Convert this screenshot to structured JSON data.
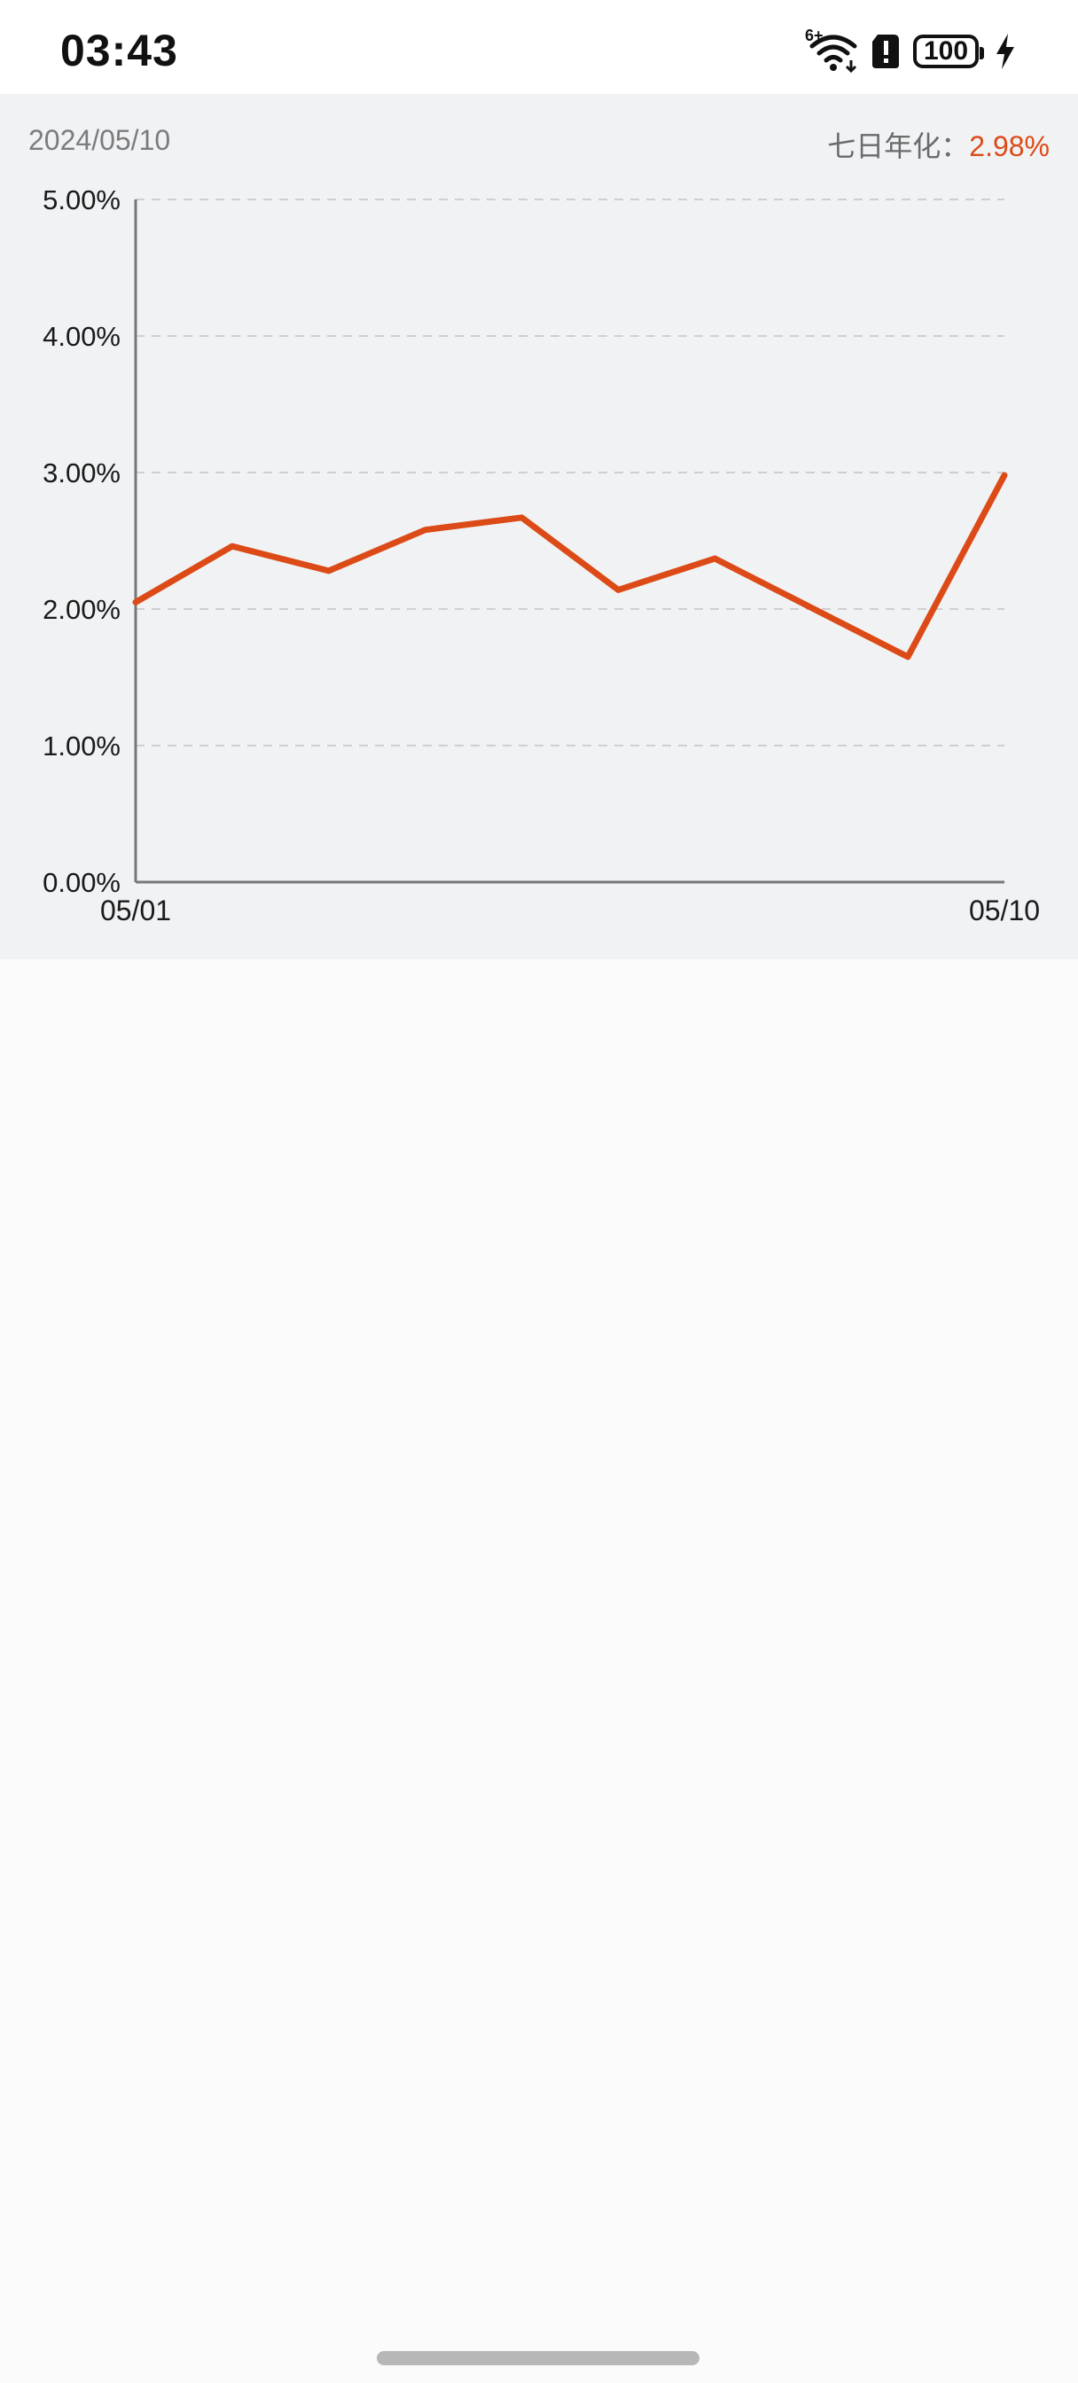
{
  "status_bar": {
    "time": "03:43",
    "network_badge": "6+",
    "battery": "100",
    "icons": [
      "wifi-icon",
      "sim-alert-icon",
      "battery-icon",
      "charging-bolt-icon"
    ]
  },
  "header": {
    "date": "2024/05/10",
    "yield_label": "七日年化：",
    "yield_value": "2.98%"
  },
  "colors": {
    "line": "#dc4b17",
    "grid": "#cfcfcf",
    "axis": "#777777",
    "panel": "#f1f2f4"
  },
  "chart_data": {
    "type": "line",
    "title": "",
    "xlabel": "",
    "ylabel": "",
    "x_tick_labels": [
      "05/01",
      "05/10"
    ],
    "y_tick_labels": [
      "0.00%",
      "1.00%",
      "2.00%",
      "3.00%",
      "4.00%",
      "5.00%"
    ],
    "ylim": [
      0,
      5
    ],
    "y_unit": "%",
    "grid": "horizontal dashed",
    "x": [
      "05/01",
      "05/02",
      "05/03",
      "05/04",
      "05/05",
      "05/06",
      "05/07",
      "05/08",
      "05/09",
      "05/10"
    ],
    "series": [
      {
        "values": [
          2.05,
          2.46,
          2.28,
          2.58,
          2.67,
          2.14,
          2.37,
          2.01,
          1.65,
          2.98
        ]
      }
    ]
  }
}
